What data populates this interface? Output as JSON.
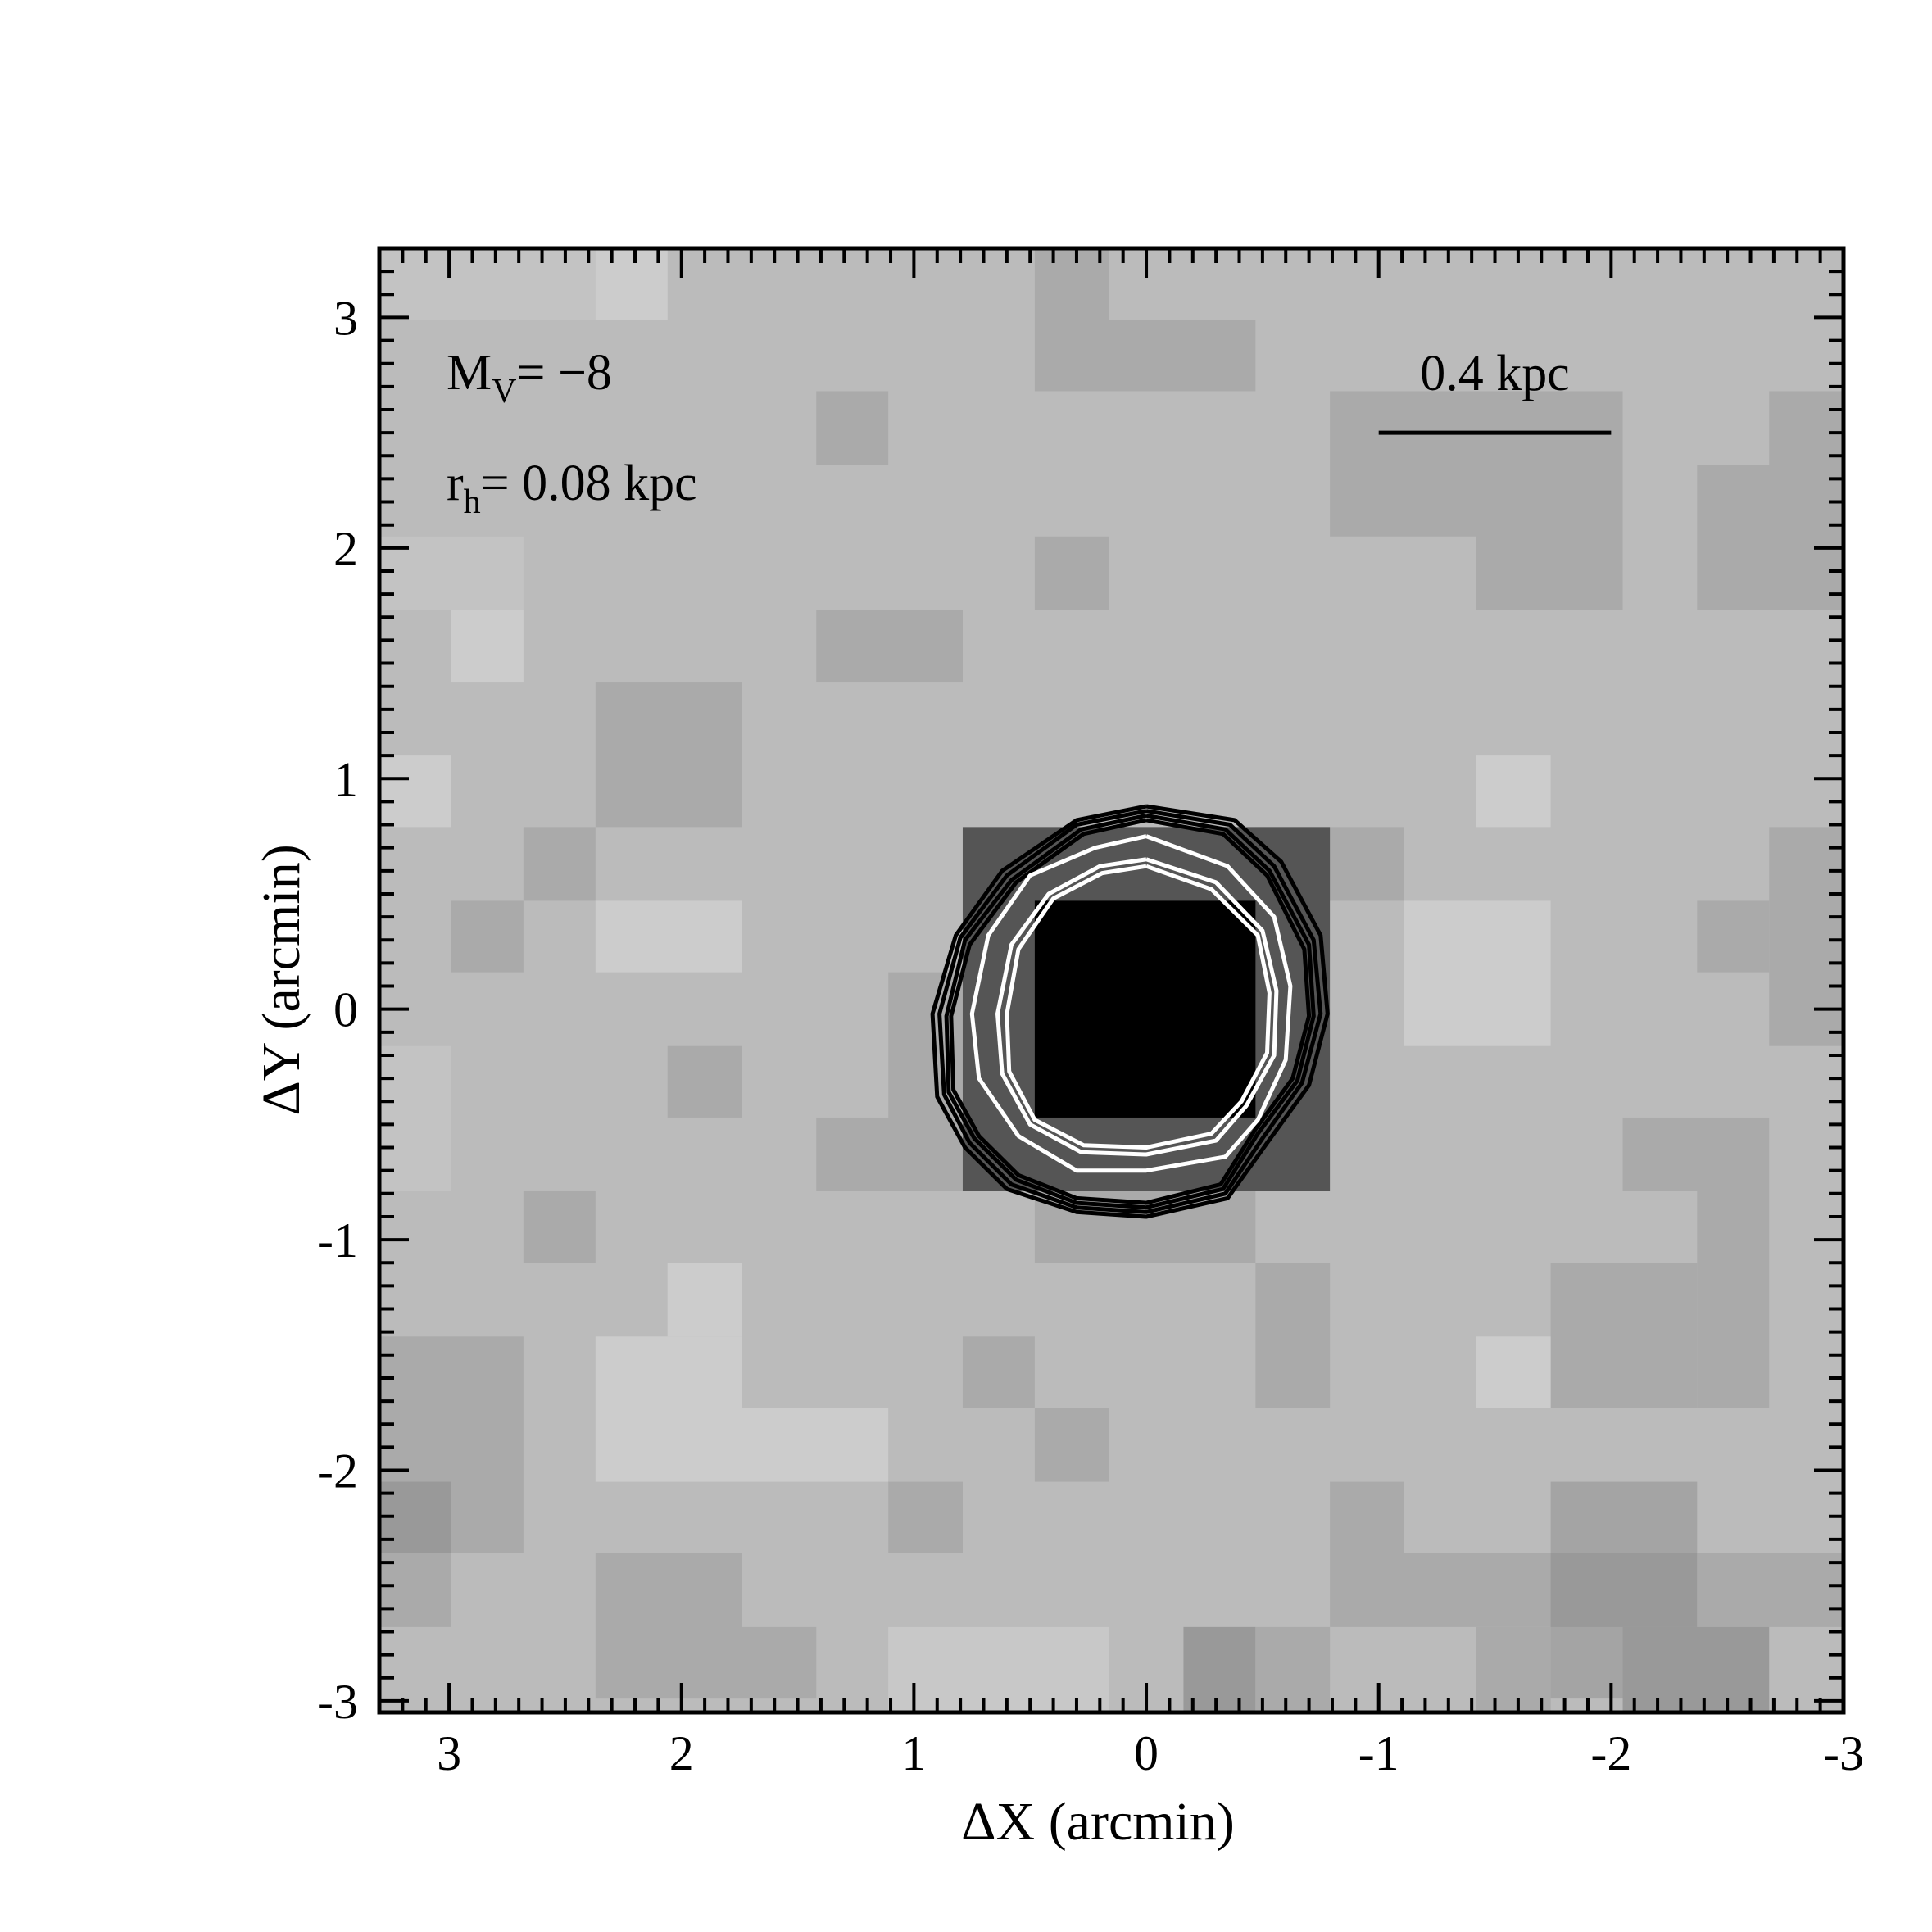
{
  "chart_data": {
    "type": "heatmap",
    "title": "",
    "xlabel": "ΔX (arcmin)",
    "ylabel": "ΔY (arcmin)",
    "xlim": [
      3.3,
      -3.0
    ],
    "ylim": [
      -3.05,
      3.3
    ],
    "x_axis_reversed": true,
    "x_ticks": [
      3,
      2,
      1,
      0,
      -1,
      -2,
      -3
    ],
    "y_ticks": [
      3,
      2,
      1,
      0,
      -1,
      -2,
      -3
    ],
    "x_tick_labels": [
      "3",
      "2",
      "1",
      "0",
      "-1",
      "-2",
      "-3"
    ],
    "y_tick_labels": [
      "3",
      "2",
      "1",
      "0",
      "-1",
      "-2",
      "-3"
    ],
    "pixel_size_arcmin": 0.316,
    "grid": false,
    "colormap": "inverted-grayscale",
    "background_gray": "#bbbbbb",
    "cells": [
      {
        "x0": 3.3,
        "x1": 2.37,
        "y0": 2.99,
        "y1": 3.3,
        "gray": "#c3c3c3"
      },
      {
        "x0": 2.37,
        "x1": 2.06,
        "y0": 2.99,
        "y1": 3.3,
        "gray": "#cccccc"
      },
      {
        "x0": 1.42,
        "x1": 1.11,
        "y0": 2.36,
        "y1": 2.68,
        "gray": "#aaaaaa"
      },
      {
        "x0": 0.48,
        "x1": 0.16,
        "y0": 2.68,
        "y1": 3.3,
        "gray": "#aaaaaa"
      },
      {
        "x0": 0.16,
        "x1": -0.47,
        "y0": 2.68,
        "y1": 2.99,
        "gray": "#aaaaaa"
      },
      {
        "x0": -0.79,
        "x1": -1.42,
        "y0": 2.05,
        "y1": 2.68,
        "gray": "#aaaaaa"
      },
      {
        "x0": -1.42,
        "x1": -1.42,
        "y0": 1.73,
        "y1": 2.68,
        "gray": "#aaaaaa"
      },
      {
        "x0": -1.42,
        "x1": -2.05,
        "y0": 1.73,
        "y1": 2.68,
        "gray": "#aaaaaa"
      },
      {
        "x0": -2.37,
        "x1": -3.0,
        "y0": 1.73,
        "y1": 2.36,
        "gray": "#aaaaaa"
      },
      {
        "x0": -2.68,
        "x1": -3.0,
        "y0": 2.36,
        "y1": 2.68,
        "gray": "#aaaaaa"
      },
      {
        "x0": 3.3,
        "x1": 2.68,
        "y0": 1.73,
        "y1": 2.05,
        "gray": "#c3c3c3"
      },
      {
        "x0": 2.99,
        "x1": 2.68,
        "y0": 1.42,
        "y1": 1.73,
        "gray": "#cccccc"
      },
      {
        "x0": 0.48,
        "x1": 0.16,
        "y0": 1.73,
        "y1": 2.05,
        "gray": "#aaaaaa"
      },
      {
        "x0": 1.42,
        "x1": 0.79,
        "y0": 1.42,
        "y1": 1.73,
        "gray": "#aaaaaa"
      },
      {
        "x0": 2.37,
        "x1": 1.74,
        "y0": 0.79,
        "y1": 1.42,
        "gray": "#aaaaaa"
      },
      {
        "x0": 3.3,
        "x1": 2.99,
        "y0": 0.79,
        "y1": 1.1,
        "gray": "#cccccc"
      },
      {
        "x0": -1.42,
        "x1": -1.74,
        "y0": 0.79,
        "y1": 1.1,
        "gray": "#cccccc"
      },
      {
        "x0": 2.68,
        "x1": 2.37,
        "y0": 0.47,
        "y1": 0.79,
        "gray": "#aaaaaa"
      },
      {
        "x0": 2.99,
        "x1": 2.68,
        "y0": 0.16,
        "y1": 0.47,
        "gray": "#aaaaaa"
      },
      {
        "x0": 2.37,
        "x1": 1.74,
        "y0": 0.16,
        "y1": 0.47,
        "gray": "#cccccc"
      },
      {
        "x0": -1.11,
        "x1": -1.74,
        "y0": -0.16,
        "y1": 0.47,
        "gray": "#cccccc"
      },
      {
        "x0": -0.47,
        "x1": -1.11,
        "y0": 0.47,
        "y1": 0.79,
        "gray": "#aaaaaa"
      },
      {
        "x0": -2.37,
        "x1": -2.68,
        "y0": 0.16,
        "y1": 0.47,
        "gray": "#aaaaaa"
      },
      {
        "x0": -2.68,
        "x1": -3.0,
        "y0": -0.16,
        "y1": 0.79,
        "gray": "#aaaaaa"
      },
      {
        "x0": 3.3,
        "x1": 2.99,
        "y0": -0.79,
        "y1": -0.16,
        "gray": "#c3c3c3"
      },
      {
        "x0": 2.06,
        "x1": 1.74,
        "y0": -0.47,
        "y1": -0.16,
        "gray": "#aaaaaa"
      },
      {
        "x0": 1.42,
        "x1": 0.48,
        "y0": -0.79,
        "y1": -0.47,
        "gray": "#aaaaaa"
      },
      {
        "x0": 1.11,
        "x1": 0.79,
        "y0": -0.47,
        "y1": 0.16,
        "gray": "#aaaaaa"
      },
      {
        "x0": 0.79,
        "x1": -0.79,
        "y0": -0.79,
        "y1": 0.79,
        "gray": "#555555"
      },
      {
        "x0": 0.48,
        "x1": -0.47,
        "y0": -0.47,
        "y1": 0.47,
        "gray": "#000000"
      },
      {
        "x0": 2.68,
        "x1": 2.37,
        "y0": -1.1,
        "y1": -0.79,
        "gray": "#aaaaaa"
      },
      {
        "x0": 0.48,
        "x1": -0.47,
        "y0": -1.1,
        "y1": -0.79,
        "gray": "#aaaaaa"
      },
      {
        "x0": -0.47,
        "x1": -0.79,
        "y0": -1.73,
        "y1": -1.1,
        "gray": "#aaaaaa"
      },
      {
        "x0": -2.05,
        "x1": -2.68,
        "y0": -0.79,
        "y1": -0.47,
        "gray": "#aaaaaa"
      },
      {
        "x0": -2.37,
        "x1": -2.68,
        "y0": -1.73,
        "y1": -0.79,
        "gray": "#aaaaaa"
      },
      {
        "x0": -1.74,
        "x1": -2.37,
        "y0": -1.73,
        "y1": -1.1,
        "gray": "#aaaaaa"
      },
      {
        "x0": 2.06,
        "x1": 1.74,
        "y0": -1.42,
        "y1": -1.1,
        "gray": "#cccccc"
      },
      {
        "x0": 2.37,
        "x1": 1.74,
        "y0": -1.73,
        "y1": -1.42,
        "gray": "#cccccc"
      },
      {
        "x0": 2.37,
        "x1": 1.11,
        "y0": -2.05,
        "y1": -1.73,
        "gray": "#cccccc"
      },
      {
        "x0": 0.79,
        "x1": 0.48,
        "y0": -1.73,
        "y1": -1.42,
        "gray": "#aaaaaa"
      },
      {
        "x0": 0.48,
        "x1": 0.16,
        "y0": -2.05,
        "y1": -1.73,
        "gray": "#aaaaaa"
      },
      {
        "x0": -1.42,
        "x1": -1.74,
        "y0": -1.73,
        "y1": -1.42,
        "gray": "#cccccc"
      },
      {
        "x0": 3.3,
        "x1": 2.68,
        "y0": -2.36,
        "y1": -1.42,
        "gray": "#aaaaaa"
      },
      {
        "x0": 3.3,
        "x1": 2.99,
        "y0": -2.36,
        "y1": -2.05,
        "gray": "#999999"
      },
      {
        "x0": 3.3,
        "x1": 2.99,
        "y0": -2.68,
        "y1": -2.36,
        "gray": "#aaaaaa"
      },
      {
        "x0": 1.11,
        "x1": 0.79,
        "y0": -2.36,
        "y1": -2.05,
        "gray": "#aaaaaa"
      },
      {
        "x0": 2.37,
        "x1": 1.74,
        "y0": -2.99,
        "y1": -2.36,
        "gray": "#aaaaaa"
      },
      {
        "x0": 1.74,
        "x1": 1.42,
        "y0": -2.99,
        "y1": -2.68,
        "gray": "#aaaaaa"
      },
      {
        "x0": 1.11,
        "x1": 0.16,
        "y0": -3.05,
        "y1": -2.68,
        "gray": "#c8c8c8"
      },
      {
        "x0": -0.16,
        "x1": -0.47,
        "y0": -3.05,
        "y1": -2.68,
        "gray": "#999999"
      },
      {
        "x0": -0.47,
        "x1": -0.79,
        "y0": -3.05,
        "y1": -2.68,
        "gray": "#aaaaaa"
      },
      {
        "x0": -0.79,
        "x1": -1.11,
        "y0": -2.68,
        "y1": -2.05,
        "gray": "#aaaaaa"
      },
      {
        "x0": -1.11,
        "x1": -1.74,
        "y0": -2.68,
        "y1": -2.36,
        "gray": "#aaaaaa"
      },
      {
        "x0": -1.74,
        "x1": -2.37,
        "y0": -2.99,
        "y1": -2.05,
        "gray": "#a4a4a4"
      },
      {
        "x0": -1.74,
        "x1": -2.37,
        "y0": -2.68,
        "y1": -2.36,
        "gray": "#999999"
      },
      {
        "x0": -2.37,
        "x1": -3.0,
        "y0": -2.68,
        "y1": -2.36,
        "gray": "#aaaaaa"
      },
      {
        "x0": -2.05,
        "x1": -2.68,
        "y0": -3.05,
        "y1": -2.68,
        "gray": "#999999"
      },
      {
        "x0": -1.42,
        "x1": -1.74,
        "y0": -3.05,
        "y1": -2.68,
        "gray": "#aaaaaa"
      }
    ],
    "contours": [
      {
        "color": "#000000",
        "points": [
          [
            0.0,
            0.88
          ],
          [
            -0.38,
            0.82
          ],
          [
            -0.58,
            0.64
          ],
          [
            -0.75,
            0.32
          ],
          [
            -0.78,
            -0.02
          ],
          [
            -0.7,
            -0.33
          ],
          [
            -0.52,
            -0.58
          ],
          [
            -0.35,
            -0.82
          ],
          [
            0.0,
            -0.9
          ],
          [
            0.3,
            -0.88
          ],
          [
            0.6,
            -0.78
          ],
          [
            0.78,
            -0.6
          ],
          [
            0.9,
            -0.38
          ],
          [
            0.92,
            -0.02
          ],
          [
            0.82,
            0.32
          ],
          [
            0.62,
            0.6
          ],
          [
            0.3,
            0.82
          ],
          [
            0.0,
            0.88
          ]
        ]
      },
      {
        "color": "#000000",
        "points": [
          [
            0.0,
            0.86
          ],
          [
            -0.36,
            0.8
          ],
          [
            -0.55,
            0.62
          ],
          [
            -0.72,
            0.3
          ],
          [
            -0.75,
            -0.02
          ],
          [
            -0.67,
            -0.32
          ],
          [
            -0.5,
            -0.56
          ],
          [
            -0.34,
            -0.8
          ],
          [
            0.0,
            -0.88
          ],
          [
            0.3,
            -0.86
          ],
          [
            0.58,
            -0.76
          ],
          [
            0.76,
            -0.58
          ],
          [
            0.87,
            -0.37
          ],
          [
            0.89,
            -0.02
          ],
          [
            0.8,
            0.31
          ],
          [
            0.6,
            0.58
          ],
          [
            0.3,
            0.8
          ],
          [
            0.0,
            0.86
          ]
        ]
      },
      {
        "color": "#000000",
        "points": [
          [
            0.0,
            0.84
          ],
          [
            -0.34,
            0.78
          ],
          [
            -0.53,
            0.6
          ],
          [
            -0.7,
            0.28
          ],
          [
            -0.72,
            -0.03
          ],
          [
            -0.65,
            -0.31
          ],
          [
            -0.48,
            -0.54
          ],
          [
            -0.33,
            -0.78
          ],
          [
            0.0,
            -0.86
          ],
          [
            0.3,
            -0.84
          ],
          [
            0.56,
            -0.74
          ],
          [
            0.74,
            -0.56
          ],
          [
            0.85,
            -0.36
          ],
          [
            0.86,
            -0.03
          ],
          [
            0.78,
            0.3
          ],
          [
            0.58,
            0.56
          ],
          [
            0.28,
            0.78
          ],
          [
            0.0,
            0.84
          ]
        ]
      },
      {
        "color": "#000000",
        "points": [
          [
            0.0,
            0.82
          ],
          [
            -0.33,
            0.76
          ],
          [
            -0.52,
            0.58
          ],
          [
            -0.68,
            0.26
          ],
          [
            -0.7,
            -0.03
          ],
          [
            -0.63,
            -0.3
          ],
          [
            -0.47,
            -0.52
          ],
          [
            -0.32,
            -0.76
          ],
          [
            0.0,
            -0.84
          ],
          [
            0.3,
            -0.82
          ],
          [
            0.55,
            -0.72
          ],
          [
            0.72,
            -0.55
          ],
          [
            0.83,
            -0.35
          ],
          [
            0.84,
            -0.03
          ],
          [
            0.76,
            0.28
          ],
          [
            0.56,
            0.55
          ],
          [
            0.27,
            0.76
          ],
          [
            0.0,
            0.82
          ]
        ]
      },
      {
        "color": "#ffffff",
        "points": [
          [
            0.0,
            0.75
          ],
          [
            -0.35,
            0.62
          ],
          [
            -0.55,
            0.4
          ],
          [
            -0.62,
            0.1
          ],
          [
            -0.6,
            -0.22
          ],
          [
            -0.48,
            -0.48
          ],
          [
            -0.34,
            -0.64
          ],
          [
            0.0,
            -0.7
          ],
          [
            0.3,
            -0.7
          ],
          [
            0.55,
            -0.55
          ],
          [
            0.72,
            -0.3
          ],
          [
            0.75,
            -0.02
          ],
          [
            0.68,
            0.32
          ],
          [
            0.5,
            0.58
          ],
          [
            0.22,
            0.7
          ],
          [
            0.0,
            0.75
          ]
        ]
      },
      {
        "color": "#ffffff",
        "points": [
          [
            0.0,
            0.65
          ],
          [
            -0.3,
            0.55
          ],
          [
            -0.5,
            0.34
          ],
          [
            -0.56,
            0.08
          ],
          [
            -0.55,
            -0.2
          ],
          [
            -0.43,
            -0.42
          ],
          [
            -0.3,
            -0.57
          ],
          [
            0.0,
            -0.63
          ],
          [
            0.28,
            -0.62
          ],
          [
            0.5,
            -0.5
          ],
          [
            0.62,
            -0.28
          ],
          [
            0.64,
            -0.02
          ],
          [
            0.58,
            0.28
          ],
          [
            0.42,
            0.5
          ],
          [
            0.2,
            0.62
          ],
          [
            0.0,
            0.65
          ]
        ]
      },
      {
        "color": "#ffffff",
        "points": [
          [
            0.0,
            0.62
          ],
          [
            -0.28,
            0.52
          ],
          [
            -0.48,
            0.32
          ],
          [
            -0.53,
            0.07
          ],
          [
            -0.52,
            -0.19
          ],
          [
            -0.41,
            -0.4
          ],
          [
            -0.28,
            -0.54
          ],
          [
            0.0,
            -0.6
          ],
          [
            0.27,
            -0.59
          ],
          [
            0.48,
            -0.48
          ],
          [
            0.59,
            -0.27
          ],
          [
            0.6,
            -0.02
          ],
          [
            0.55,
            0.26
          ],
          [
            0.4,
            0.48
          ],
          [
            0.19,
            0.59
          ],
          [
            0.0,
            0.62
          ]
        ]
      }
    ],
    "annotations": {
      "mv_main": "M",
      "mv_sub": "V",
      "mv_rest": "= −8",
      "rh_main": "r",
      "rh_sub": "h",
      "rh_rest": "= 0.08 kpc",
      "scalebar_label": "0.4 kpc",
      "scalebar_x": [
        -1.0,
        -2.0
      ],
      "scalebar_y": 2.5
    }
  }
}
